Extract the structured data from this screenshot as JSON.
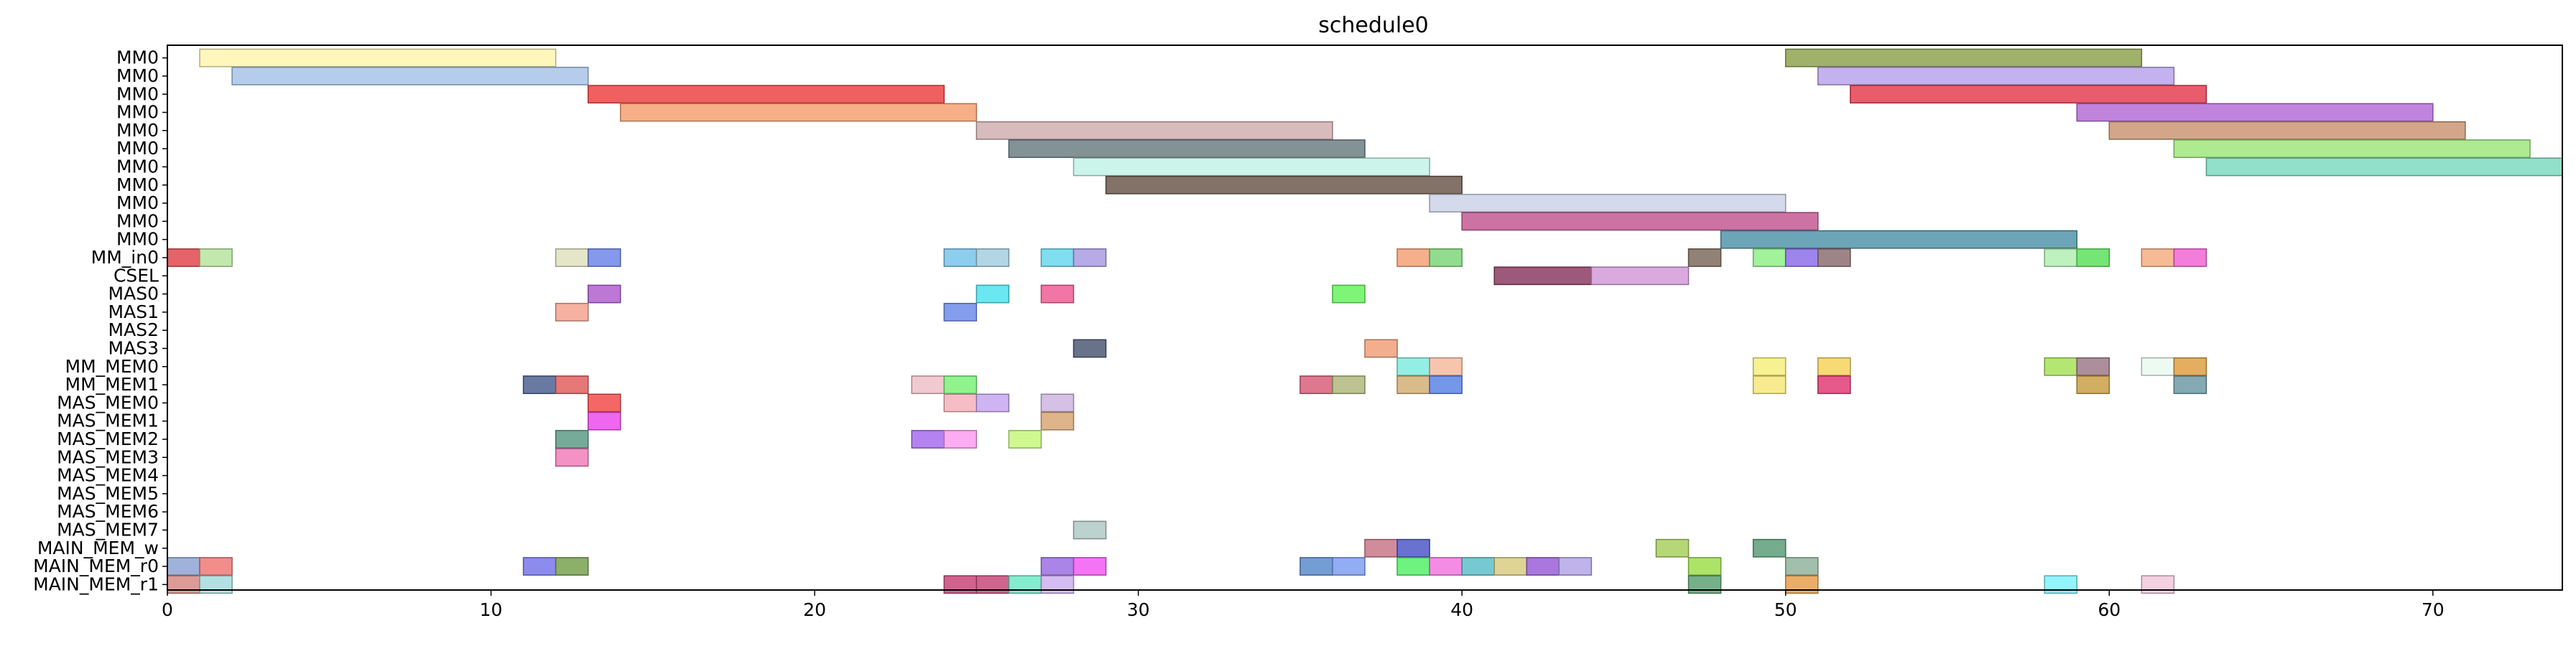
{
  "chart_data": {
    "type": "gantt",
    "title": "schedule0",
    "xlim": [
      0,
      74
    ],
    "xticks": [
      0,
      10,
      20,
      30,
      40,
      50,
      60,
      70
    ],
    "rows": [
      "MM0",
      "MM0",
      "MM0",
      "MM0",
      "MM0",
      "MM0",
      "MM0",
      "MM0",
      "MM0",
      "MM0",
      "MM0",
      "MM_in0",
      "CSEL",
      "MAS0",
      "MAS1",
      "MAS2",
      "MAS3",
      "MM_MEM0",
      "MM_MEM1",
      "MAS_MEM0",
      "MAS_MEM1",
      "MAS_MEM2",
      "MAS_MEM3",
      "MAS_MEM4",
      "MAS_MEM5",
      "MAS_MEM6",
      "MAS_MEM7",
      "MAIN_MEM_w",
      "MAIN_MEM_r0",
      "MAIN_MEM_r1"
    ],
    "bars": [
      {
        "row": 0,
        "start": 1,
        "end": 12,
        "color": "#fff5b0"
      },
      {
        "row": 0,
        "start": 50,
        "end": 61,
        "color": "#8fa350"
      },
      {
        "row": 1,
        "start": 2,
        "end": 13,
        "color": "#a8c4e8"
      },
      {
        "row": 1,
        "start": 51,
        "end": 62,
        "color": "#b9a4ea"
      },
      {
        "row": 2,
        "start": 13,
        "end": 24,
        "color": "#ee4444"
      },
      {
        "row": 2,
        "start": 52,
        "end": 63,
        "color": "#e43f52"
      },
      {
        "row": 3,
        "start": 14,
        "end": 25,
        "color": "#f6a173"
      },
      {
        "row": 3,
        "start": 59,
        "end": 70,
        "color": "#b56ed6"
      },
      {
        "row": 4,
        "start": 25,
        "end": 36,
        "color": "#d1afb0"
      },
      {
        "row": 4,
        "start": 60,
        "end": 71,
        "color": "#cb9674"
      },
      {
        "row": 5,
        "start": 26,
        "end": 37,
        "color": "#6c7f83"
      },
      {
        "row": 5,
        "start": 62,
        "end": 73,
        "color": "#9fe67d"
      },
      {
        "row": 6,
        "start": 28,
        "end": 39,
        "color": "#c2f3e8"
      },
      {
        "row": 6,
        "start": 63,
        "end": 74,
        "color": "#7ddbc1"
      },
      {
        "row": 7,
        "start": 29,
        "end": 40,
        "color": "#6d594c"
      },
      {
        "row": 8,
        "start": 39,
        "end": 50,
        "color": "#cdd2e9"
      },
      {
        "row": 9,
        "start": 40,
        "end": 51,
        "color": "#c35a94"
      },
      {
        "row": 10,
        "start": 48,
        "end": 59,
        "color": "#5295aa"
      },
      {
        "row": 11,
        "start": 0,
        "end": 1,
        "color": "#e1484f"
      },
      {
        "row": 11,
        "start": 1,
        "end": 2,
        "color": "#b7e49f"
      },
      {
        "row": 11,
        "start": 12,
        "end": 13,
        "color": "#e0e2bf"
      },
      {
        "row": 11,
        "start": 13,
        "end": 14,
        "color": "#6e86e9"
      },
      {
        "row": 11,
        "start": 24,
        "end": 25,
        "color": "#79c4ea"
      },
      {
        "row": 11,
        "start": 25,
        "end": 26,
        "color": "#a6cfe0"
      },
      {
        "row": 11,
        "start": 27,
        "end": 28,
        "color": "#69d8ec"
      },
      {
        "row": 11,
        "start": 28,
        "end": 29,
        "color": "#a99be3"
      },
      {
        "row": 11,
        "start": 38,
        "end": 39,
        "color": "#f3a177"
      },
      {
        "row": 11,
        "start": 39,
        "end": 40,
        "color": "#7ed67a"
      },
      {
        "row": 11,
        "start": 47,
        "end": 48,
        "color": "#7e6c5d"
      },
      {
        "row": 11,
        "start": 49,
        "end": 50,
        "color": "#90f08a"
      },
      {
        "row": 11,
        "start": 50,
        "end": 51,
        "color": "#8d6ee9"
      },
      {
        "row": 11,
        "start": 51,
        "end": 52,
        "color": "#8c6f72"
      },
      {
        "row": 11,
        "start": 58,
        "end": 59,
        "color": "#b3efb2"
      },
      {
        "row": 11,
        "start": 59,
        "end": 60,
        "color": "#5de25d"
      },
      {
        "row": 11,
        "start": 61,
        "end": 62,
        "color": "#f5ae83"
      },
      {
        "row": 11,
        "start": 62,
        "end": 63,
        "color": "#f166d3"
      },
      {
        "row": 12,
        "start": 41,
        "end": 44,
        "color": "#8b3c63"
      },
      {
        "row": 12,
        "start": 44,
        "end": 47,
        "color": "#d39bd8"
      },
      {
        "row": 13,
        "start": 13,
        "end": 14,
        "color": "#b05fd0"
      },
      {
        "row": 13,
        "start": 25,
        "end": 26,
        "color": "#50e3ee"
      },
      {
        "row": 13,
        "start": 27,
        "end": 28,
        "color": "#f05e95"
      },
      {
        "row": 13,
        "start": 36,
        "end": 37,
        "color": "#66f55f"
      },
      {
        "row": 14,
        "start": 12,
        "end": 13,
        "color": "#f4a38f"
      },
      {
        "row": 14,
        "start": 24,
        "end": 25,
        "color": "#6f8ce9"
      },
      {
        "row": 16,
        "start": 28,
        "end": 29,
        "color": "#4e5b74"
      },
      {
        "row": 16,
        "start": 37,
        "end": 38,
        "color": "#f1a07a"
      },
      {
        "row": 17,
        "start": 38,
        "end": 39,
        "color": "#80ecdf"
      },
      {
        "row": 17,
        "start": 39,
        "end": 40,
        "color": "#f6bba0"
      },
      {
        "row": 17,
        "start": 49,
        "end": 50,
        "color": "#f6ef7e"
      },
      {
        "row": 17,
        "start": 51,
        "end": 52,
        "color": "#f6d45e"
      },
      {
        "row": 17,
        "start": 58,
        "end": 59,
        "color": "#a7e25c"
      },
      {
        "row": 17,
        "start": 59,
        "end": 60,
        "color": "#9d7b8a"
      },
      {
        "row": 17,
        "start": 61,
        "end": 62,
        "color": "#e9f9ee"
      },
      {
        "row": 17,
        "start": 62,
        "end": 63,
        "color": "#dea043"
      },
      {
        "row": 18,
        "start": 11,
        "end": 12,
        "color": "#4f6190"
      },
      {
        "row": 18,
        "start": 12,
        "end": 13,
        "color": "#e05f5f"
      },
      {
        "row": 18,
        "start": 23,
        "end": 24,
        "color": "#eec0c8"
      },
      {
        "row": 18,
        "start": 24,
        "end": 25,
        "color": "#7ef17a"
      },
      {
        "row": 18,
        "start": 35,
        "end": 36,
        "color": "#d7607a"
      },
      {
        "row": 18,
        "start": 36,
        "end": 37,
        "color": "#b0b87c"
      },
      {
        "row": 18,
        "start": 38,
        "end": 39,
        "color": "#d3b077"
      },
      {
        "row": 18,
        "start": 39,
        "end": 40,
        "color": "#5d85e6"
      },
      {
        "row": 18,
        "start": 49,
        "end": 50,
        "color": "#f7e67a"
      },
      {
        "row": 18,
        "start": 51,
        "end": 52,
        "color": "#e23c75"
      },
      {
        "row": 18,
        "start": 59,
        "end": 60,
        "color": "#c9a046"
      },
      {
        "row": 18,
        "start": 62,
        "end": 63,
        "color": "#6e9aa4"
      },
      {
        "row": 19,
        "start": 13,
        "end": 14,
        "color": "#f34c4c"
      },
      {
        "row": 19,
        "start": 24,
        "end": 25,
        "color": "#f6b2bc"
      },
      {
        "row": 19,
        "start": 25,
        "end": 26,
        "color": "#c5a7f0"
      },
      {
        "row": 19,
        "start": 27,
        "end": 28,
        "color": "#cdb6e0"
      },
      {
        "row": 20,
        "start": 13,
        "end": 14,
        "color": "#ec4bec"
      },
      {
        "row": 20,
        "start": 27,
        "end": 28,
        "color": "#d8a875"
      },
      {
        "row": 21,
        "start": 12,
        "end": 13,
        "color": "#5e9c88"
      },
      {
        "row": 21,
        "start": 23,
        "end": 24,
        "color": "#a86cef"
      },
      {
        "row": 21,
        "start": 24,
        "end": 25,
        "color": "#fb9ef0"
      },
      {
        "row": 21,
        "start": 26,
        "end": 27,
        "color": "#c7f77c"
      },
      {
        "row": 22,
        "start": 12,
        "end": 13,
        "color": "#f17fba"
      },
      {
        "row": 26,
        "start": 28,
        "end": 29,
        "color": "#b1c9c7"
      },
      {
        "row": 27,
        "start": 37,
        "end": 38,
        "color": "#c8788a"
      },
      {
        "row": 27,
        "start": 38,
        "end": 39,
        "color": "#4f59c7"
      },
      {
        "row": 27,
        "start": 46,
        "end": 47,
        "color": "#a9d05f"
      },
      {
        "row": 27,
        "start": 49,
        "end": 50,
        "color": "#5c9e79"
      },
      {
        "row": 28,
        "start": 0,
        "end": 1,
        "color": "#8ea4d2"
      },
      {
        "row": 28,
        "start": 1,
        "end": 2,
        "color": "#ee7a78"
      },
      {
        "row": 28,
        "start": 11,
        "end": 12,
        "color": "#7878ec"
      },
      {
        "row": 28,
        "start": 12,
        "end": 13,
        "color": "#78a14f"
      },
      {
        "row": 28,
        "start": 27,
        "end": 28,
        "color": "#9b6fe2"
      },
      {
        "row": 28,
        "start": 28,
        "end": 29,
        "color": "#f35af3"
      },
      {
        "row": 28,
        "start": 35,
        "end": 36,
        "color": "#5c8ccc"
      },
      {
        "row": 28,
        "start": 36,
        "end": 37,
        "color": "#7f9ff2"
      },
      {
        "row": 28,
        "start": 38,
        "end": 39,
        "color": "#55f06a"
      },
      {
        "row": 28,
        "start": 39,
        "end": 40,
        "color": "#f278e1"
      },
      {
        "row": 28,
        "start": 40,
        "end": 41,
        "color": "#5fbfc9"
      },
      {
        "row": 28,
        "start": 41,
        "end": 42,
        "color": "#d8cc83"
      },
      {
        "row": 28,
        "start": 42,
        "end": 43,
        "color": "#9a5fd8"
      },
      {
        "row": 28,
        "start": 43,
        "end": 44,
        "color": "#b3a6e6"
      },
      {
        "row": 28,
        "start": 47,
        "end": 48,
        "color": "#9fdf4d"
      },
      {
        "row": 28,
        "start": 50,
        "end": 51,
        "color": "#91b49d"
      },
      {
        "row": 29,
        "start": 0,
        "end": 1,
        "color": "#d78a86"
      },
      {
        "row": 29,
        "start": 1,
        "end": 2,
        "color": "#a6dcdc"
      },
      {
        "row": 29,
        "start": 24,
        "end": 25,
        "color": "#c9477a"
      },
      {
        "row": 29,
        "start": 25,
        "end": 26,
        "color": "#c74a7a"
      },
      {
        "row": 29,
        "start": 26,
        "end": 27,
        "color": "#6fe9c7"
      },
      {
        "row": 29,
        "start": 27,
        "end": 28,
        "color": "#cfb2ee"
      },
      {
        "row": 29,
        "start": 47,
        "end": 48,
        "color": "#5ea275"
      },
      {
        "row": 29,
        "start": 50,
        "end": 51,
        "color": "#e7a04f"
      },
      {
        "row": 29,
        "start": 58,
        "end": 59,
        "color": "#7ff2fb"
      },
      {
        "row": 29,
        "start": 61,
        "end": 62,
        "color": "#f2c8dc"
      }
    ]
  }
}
